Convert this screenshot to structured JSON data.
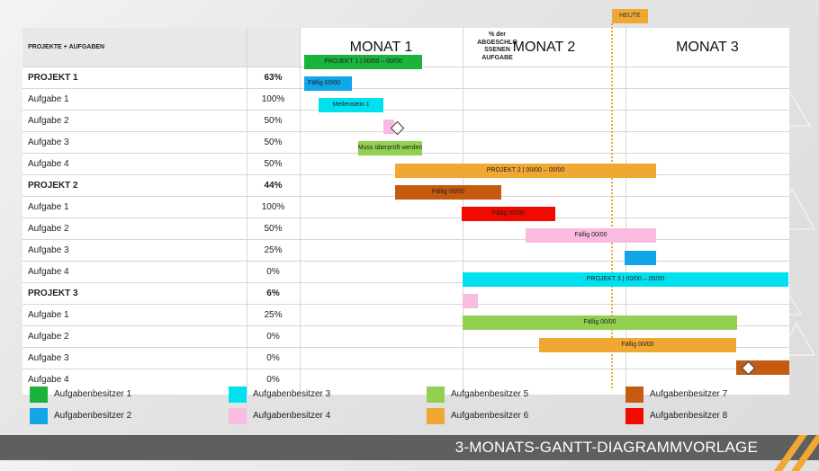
{
  "title": "3-MONATS-GANTT-DIAGRAMMVORLAGE",
  "header": {
    "col_tasks": "PROJEKTE + AUFGABEN",
    "col_pct_lines": [
      "% der",
      "ABGESCHLO",
      "SSENEN",
      "AUFGABE"
    ],
    "months": [
      "MONAT 1",
      "MONAT 2",
      "MONAT 3"
    ]
  },
  "today_label": "HEUTE",
  "rows": [
    {
      "name": "PROJEKT 1",
      "pct": "63%",
      "bold": true
    },
    {
      "name": "Aufgabe 1",
      "pct": "100%"
    },
    {
      "name": "Aufgabe 2",
      "pct": "50%"
    },
    {
      "name": "Aufgabe 3",
      "pct": "50%"
    },
    {
      "name": "Aufgabe 4",
      "pct": "50%"
    },
    {
      "name": "PROJEKT 2",
      "pct": "44%",
      "bold": true
    },
    {
      "name": "Aufgabe 1",
      "pct": "100%"
    },
    {
      "name": "Aufgabe 2",
      "pct": "50%"
    },
    {
      "name": "Aufgabe 3",
      "pct": "25%"
    },
    {
      "name": "Aufgabe 4",
      "pct": "0%"
    },
    {
      "name": "PROJEKT 3",
      "pct": "6%",
      "bold": true
    },
    {
      "name": "Aufgabe 1",
      "pct": "25%"
    },
    {
      "name": "Aufgabe 2",
      "pct": "0%"
    },
    {
      "name": "Aufgabe 3",
      "pct": "0%"
    },
    {
      "name": "Aufgabe 4",
      "pct": "0%"
    }
  ],
  "bar_labels": {
    "p1": "PROJEKT 1 |   00/00 – 00/00",
    "p1t1": "Fällig 00/00",
    "p1t2": "Meilenstein 1",
    "p1t4": "Muss überprüft werden",
    "p2": "PROJEKT 2 |   00/00 – 00/00",
    "p2t1": "Fällig 00/00",
    "p2t2": "Fällig 00/00",
    "p2t3": "Fällig 00/00",
    "p3": "PROJEKT 3 |   00/00 – 00/00",
    "p3t2": "Fällig 00/00",
    "p3t3": "Fällig 00/00"
  },
  "legend": [
    {
      "label": "Aufgabenbesitzer 1",
      "color": "#19b33d"
    },
    {
      "label": "Aufgabenbesitzer 2",
      "color": "#12a5e8"
    },
    {
      "label": "Aufgabenbesitzer 3",
      "color": "#00e1f0"
    },
    {
      "label": "Aufgabenbesitzer 4",
      "color": "#f9bbe0"
    },
    {
      "label": "Aufgabenbesitzer 5",
      "color": "#92d050"
    },
    {
      "label": "Aufgabenbesitzer 6",
      "color": "#f0a833"
    },
    {
      "label": "Aufgabenbesitzer 7",
      "color": "#c55a11"
    },
    {
      "label": "Aufgabenbesitzer 8",
      "color": "#f00a00"
    }
  ]
}
